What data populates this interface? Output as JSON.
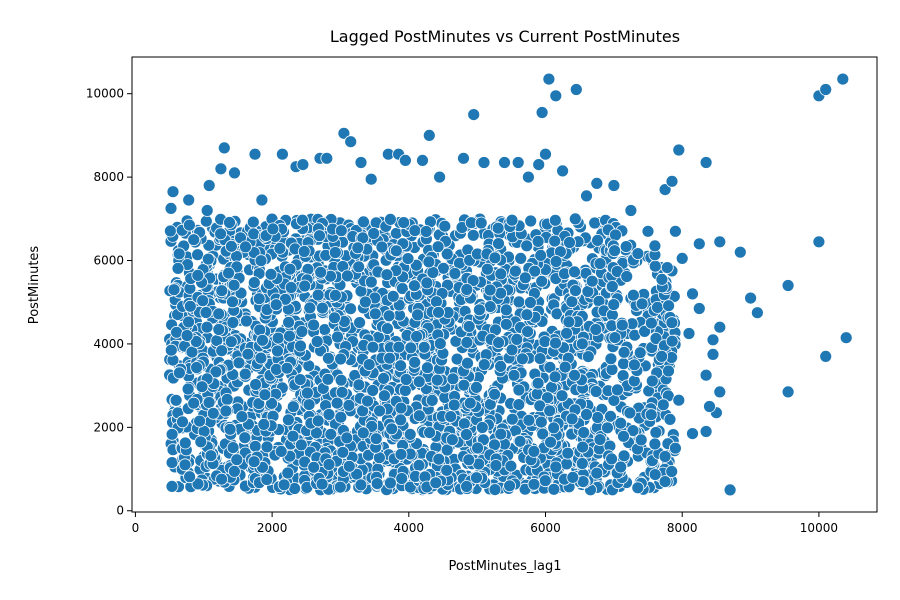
{
  "chart_data": {
    "type": "scatter",
    "title": "Lagged PostMinutes vs Current PostMinutes",
    "xlabel": "PostMinutes_lag1",
    "ylabel": "PostMinutes",
    "xlim": [
      -50,
      10850
    ],
    "ylim": [
      -30,
      10880
    ],
    "xticks": [
      0,
      2000,
      4000,
      6000,
      8000,
      10000
    ],
    "yticks": [
      0,
      2000,
      4000,
      6000,
      8000,
      10000
    ],
    "xtick_labels": [
      "0",
      "2000",
      "4000",
      "6000",
      "8000",
      "10000"
    ],
    "ytick_labels": [
      "0",
      "2000",
      "4000",
      "6000",
      "8000",
      "10000"
    ],
    "grid": false,
    "marker_color": "#1f77b4",
    "series": [
      {
        "points": [
          [
            550,
            7650
          ],
          [
            520,
            7250
          ],
          [
            780,
            7450
          ],
          [
            790,
            6850
          ],
          [
            1080,
            7800
          ],
          [
            1050,
            7200
          ],
          [
            1250,
            8200
          ],
          [
            1300,
            8700
          ],
          [
            1450,
            8100
          ],
          [
            1750,
            8550
          ],
          [
            1850,
            7450
          ],
          [
            2150,
            8550
          ],
          [
            2350,
            8250
          ],
          [
            2450,
            8300
          ],
          [
            2700,
            8450
          ],
          [
            2800,
            8450
          ],
          [
            3050,
            9050
          ],
          [
            3150,
            8850
          ],
          [
            3300,
            8350
          ],
          [
            3450,
            7950
          ],
          [
            3700,
            8550
          ],
          [
            3850,
            8550
          ],
          [
            3950,
            8400
          ],
          [
            4200,
            8400
          ],
          [
            4300,
            9000
          ],
          [
            4450,
            8000
          ],
          [
            4800,
            8450
          ],
          [
            4950,
            9500
          ],
          [
            5100,
            8350
          ],
          [
            5400,
            8350
          ],
          [
            5600,
            8350
          ],
          [
            5750,
            8000
          ],
          [
            5900,
            8300
          ],
          [
            5950,
            9550
          ],
          [
            6000,
            8550
          ],
          [
            6050,
            10350
          ],
          [
            6150,
            9950
          ],
          [
            6250,
            8150
          ],
          [
            6450,
            10100
          ],
          [
            6600,
            7550
          ],
          [
            6750,
            7850
          ],
          [
            7000,
            7800
          ],
          [
            7250,
            7200
          ],
          [
            7500,
            6700
          ],
          [
            7600,
            6350
          ],
          [
            7750,
            7700
          ],
          [
            7850,
            7900
          ],
          [
            7950,
            8650
          ],
          [
            7900,
            6700
          ],
          [
            8000,
            6050
          ],
          [
            8150,
            5200
          ],
          [
            8250,
            6400
          ],
          [
            8350,
            8350
          ],
          [
            8550,
            6450
          ],
          [
            8850,
            6200
          ],
          [
            9000,
            5100
          ],
          [
            9100,
            4750
          ],
          [
            9550,
            5400
          ],
          [
            9550,
            2850
          ],
          [
            10000,
            9950
          ],
          [
            10100,
            10100
          ],
          [
            10350,
            10350
          ],
          [
            10000,
            6450
          ],
          [
            10100,
            3700
          ],
          [
            10400,
            4150
          ],
          [
            8700,
            500
          ],
          [
            7750,
            700
          ],
          [
            7350,
            550
          ],
          [
            8450,
            3750
          ],
          [
            8550,
            2850
          ],
          [
            8500,
            2350
          ],
          [
            8350,
            1900
          ],
          [
            8150,
            1850
          ],
          [
            7900,
            1500
          ],
          [
            7750,
            1300
          ],
          [
            7600,
            1600
          ],
          [
            7400,
            1700
          ],
          [
            7100,
            1050
          ],
          [
            6750,
            900
          ],
          [
            6550,
            700
          ],
          [
            6400,
            800
          ],
          [
            6150,
            1050
          ],
          [
            7450,
            4300
          ],
          [
            7300,
            3500
          ],
          [
            7150,
            3800
          ],
          [
            8350,
            3250
          ],
          [
            8400,
            2500
          ],
          [
            8250,
            4850
          ],
          [
            8100,
            4250
          ],
          [
            7950,
            2650
          ],
          [
            7800,
            3350
          ],
          [
            7700,
            3700
          ],
          [
            7550,
            4500
          ],
          [
            8450,
            4100
          ],
          [
            8550,
            4400
          ]
        ]
      }
    ]
  }
}
